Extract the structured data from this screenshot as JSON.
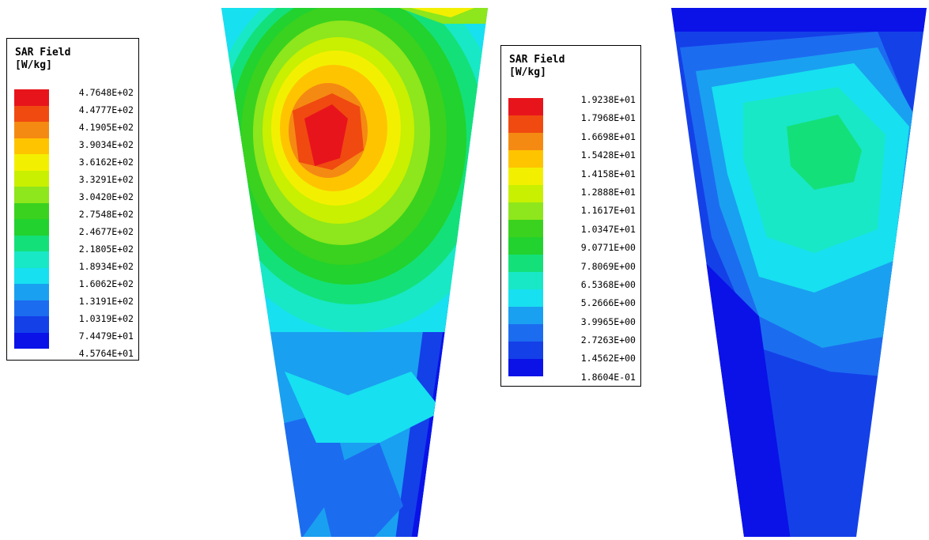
{
  "left_map": {
    "legend": {
      "title_line1": "SAR Field",
      "title_line2": "[W/kg]",
      "values": [
        "4.7648E+02",
        "4.4777E+02",
        "4.1905E+02",
        "3.9034E+02",
        "3.6162E+02",
        "3.3291E+02",
        "3.0420E+02",
        "2.7548E+02",
        "2.4677E+02",
        "2.1805E+02",
        "1.8934E+02",
        "1.6062E+02",
        "1.3191E+02",
        "1.0319E+02",
        "7.4479E+01",
        "4.5764E+01"
      ]
    }
  },
  "right_map": {
    "legend": {
      "title_line1": "SAR Field",
      "title_line2": "[W/kg]",
      "values": [
        "1.9238E+01",
        "1.7968E+01",
        "1.6698E+01",
        "1.5428E+01",
        "1.4158E+01",
        "1.2888E+01",
        "1.1617E+01",
        "1.0347E+01",
        "9.0771E+00",
        "7.8069E+00",
        "6.5368E+00",
        "5.2666E+00",
        "3.9965E+00",
        "2.7263E+00",
        "1.4562E+00",
        "1.8604E-01"
      ]
    }
  },
  "colors": {
    "scale": [
      "#e8141c",
      "#f04a10",
      "#f58a12",
      "#ffc400",
      "#f2f000",
      "#c8f000",
      "#8ee61c",
      "#3ad21e",
      "#22d22e",
      "#14e07a",
      "#18e8c6",
      "#17e0f0",
      "#1aa0f0",
      "#1c6cf0",
      "#1440e8",
      "#0a12e8"
    ],
    "background": "#ffffff",
    "border": "#000000"
  }
}
